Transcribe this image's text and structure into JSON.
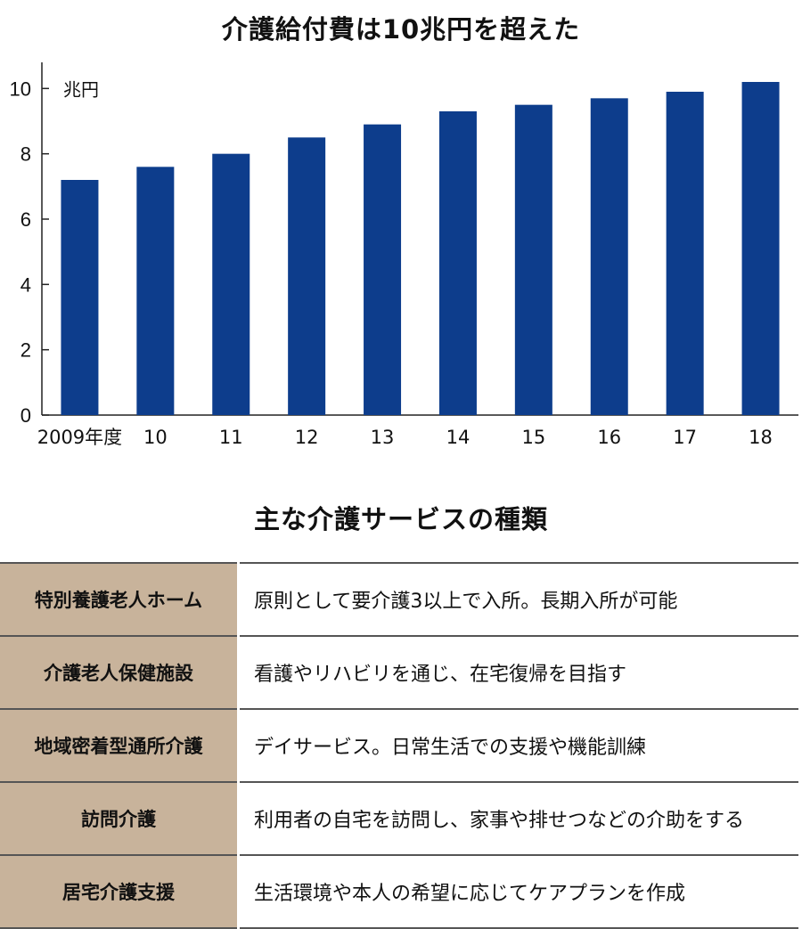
{
  "chart_data": {
    "type": "bar",
    "title": "介護給付費は10兆円を超えた",
    "unit_label": "兆円",
    "categories": [
      "2009年度",
      "10",
      "11",
      "12",
      "13",
      "14",
      "15",
      "16",
      "17",
      "18"
    ],
    "values": [
      7.2,
      7.6,
      8.0,
      8.5,
      8.9,
      9.3,
      9.5,
      9.7,
      9.9,
      10.2
    ],
    "yticks": [
      0,
      2,
      4,
      6,
      8,
      10
    ],
    "ylim": [
      0,
      10.8
    ],
    "bar_color": "#0d3d8c",
    "grid": false
  },
  "table": {
    "title": "主な介護サービスの種類",
    "header_color": "#c8b39b",
    "rows": [
      {
        "name": "特別養護老人ホーム",
        "desc": "原則として要介護3以上で入所。長期入所が可能"
      },
      {
        "name": "介護老人保健施設",
        "desc": "看護やリハビリを通じ、在宅復帰を目指す"
      },
      {
        "name": "地域密着型通所介護",
        "desc": "デイサービス。日常生活での支援や機能訓練"
      },
      {
        "name": "訪問介護",
        "desc": "利用者の自宅を訪問し、家事や排せつなどの介助をする"
      },
      {
        "name": "居宅介護支援",
        "desc": "生活環境や本人の希望に応じてケアプランを作成"
      }
    ]
  }
}
